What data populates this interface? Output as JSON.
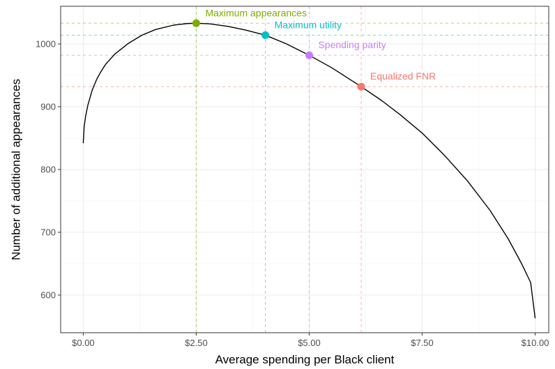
{
  "chart_data": {
    "type": "line",
    "title": "",
    "xlabel": "Average spending per Black client",
    "ylabel": "Number of additional appearances",
    "xlim": [
      -0.5,
      10.3
    ],
    "ylim": [
      540,
      1060
    ],
    "x_ticks": [
      0,
      2.5,
      5,
      7.5,
      10
    ],
    "x_tick_labels": [
      "$0.00",
      "$2.50",
      "$5.00",
      "$7.50",
      "$10.00"
    ],
    "y_ticks": [
      600,
      700,
      800,
      900,
      1000
    ],
    "y_tick_labels": [
      "600",
      "700",
      "800",
      "900",
      "1000"
    ],
    "grid": true,
    "series": [
      {
        "color": "#000000",
        "x": [
          0,
          0.02,
          0.05,
          0.1,
          0.2,
          0.3,
          0.4,
          0.5,
          0.7,
          1.0,
          1.3,
          1.6,
          2.0,
          2.3,
          2.5,
          2.8,
          3.2,
          3.6,
          4.03,
          4.5,
          5.0,
          5.5,
          6.15,
          6.6,
          7.0,
          7.5,
          8.0,
          8.5,
          9.0,
          9.4,
          9.7,
          9.9,
          10.0
        ],
        "y": [
          842,
          868,
          884,
          902,
          927,
          944,
          957,
          968,
          984,
          1001,
          1014,
          1023,
          1030,
          1032.5,
          1033,
          1032,
          1028,
          1022,
          1014,
          1000,
          982,
          962,
          932,
          910,
          888,
          858,
          822,
          782,
          735,
          690,
          650,
          620,
          563
        ]
      }
    ],
    "highlights": [
      {
        "label": "Maximum appearances",
        "x": 2.5,
        "y": 1033,
        "color": "#7CAE00"
      },
      {
        "label": "Maximum utility",
        "x": 4.03,
        "y": 1014,
        "color": "#00BFC4"
      },
      {
        "label": "Spending parity",
        "x": 5.0,
        "y": 982,
        "color": "#C77CFF"
      },
      {
        "label": "Equalized FNR",
        "x": 6.15,
        "y": 932,
        "color": "#F8766D"
      }
    ]
  }
}
